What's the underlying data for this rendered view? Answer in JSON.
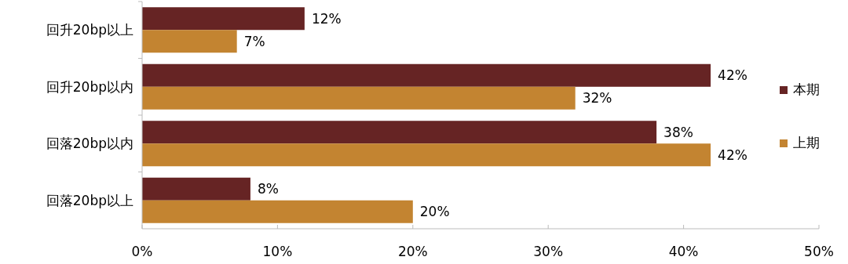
{
  "chart_data": {
    "type": "bar",
    "orientation": "horizontal",
    "categories": [
      "回升20bp以上",
      "回升20bp以内",
      "回落20bp以内",
      "回落20bp以上"
    ],
    "series": [
      {
        "name": "本期",
        "color": "#662424",
        "values": [
          12,
          42,
          38,
          8
        ],
        "value_labels": [
          "12%",
          "42%",
          "38%",
          "8%"
        ]
      },
      {
        "name": "上期",
        "color": "#c38431",
        "values": [
          7,
          32,
          42,
          20
        ],
        "value_labels": [
          "7%",
          "32%",
          "42%",
          "20%"
        ]
      }
    ],
    "xlim": [
      0,
      50
    ],
    "xticks": [
      {
        "value": 0,
        "label": "0%"
      },
      {
        "value": 10,
        "label": "10%"
      },
      {
        "value": 20,
        "label": "20%"
      },
      {
        "value": 30,
        "label": "30%"
      },
      {
        "value": 40,
        "label": "40%"
      },
      {
        "value": 50,
        "label": "50%"
      }
    ],
    "legend": "right",
    "grid": false
  }
}
